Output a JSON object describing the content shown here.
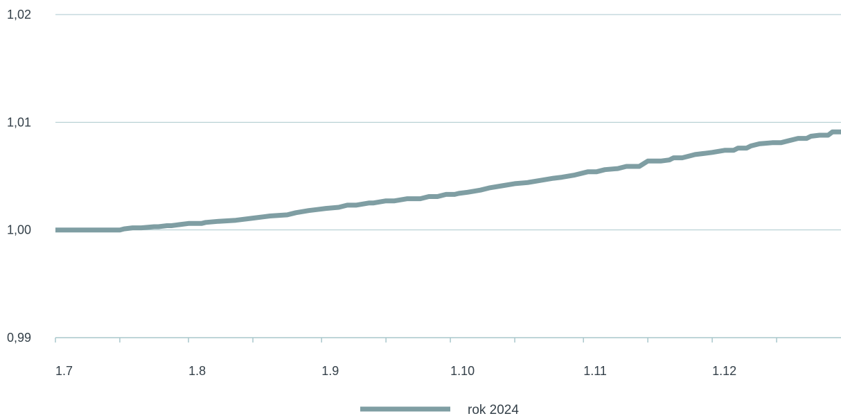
{
  "chart_data": {
    "type": "line",
    "title": "",
    "xlabel": "",
    "ylabel": "",
    "ylim": [
      0.99,
      1.02
    ],
    "y_ticks": [
      "0,99",
      "1,00",
      "1,01",
      "1,02"
    ],
    "y_tick_values": [
      0.99,
      1.0,
      1.01,
      1.02
    ],
    "x_tick_labels": [
      "1.7",
      "1.8",
      "1.9",
      "1.10",
      "1.11",
      "1.12"
    ],
    "x_tick_dates": [
      "2024-07-01",
      "2024-08-01",
      "2024-09-01",
      "2024-10-01",
      "2024-11-01",
      "2024-12-01"
    ],
    "x_range": [
      "2024-07-01",
      "2024-12-31"
    ],
    "grid": "horizontal",
    "legend_position": "bottom-center",
    "colors": {
      "series": "#7f9ea3",
      "grid": "#a9c7cc",
      "axis": "#a9c7cc",
      "text": "#333f48"
    },
    "series": [
      {
        "name": "rok 2024",
        "x": [
          "2024-07-01",
          "2024-07-16",
          "2024-07-17",
          "2024-07-19",
          "2024-07-21",
          "2024-07-24",
          "2024-07-25",
          "2024-07-27",
          "2024-07-28",
          "2024-07-30",
          "2024-08-01",
          "2024-08-04",
          "2024-08-05",
          "2024-08-08",
          "2024-08-12",
          "2024-08-16",
          "2024-08-20",
          "2024-08-24",
          "2024-08-26",
          "2024-08-29",
          "2024-08-31",
          "2024-09-02",
          "2024-09-05",
          "2024-09-07",
          "2024-09-09",
          "2024-09-12",
          "2024-09-13",
          "2024-09-16",
          "2024-09-18",
          "2024-09-21",
          "2024-09-24",
          "2024-09-26",
          "2024-09-28",
          "2024-09-30",
          "2024-10-02",
          "2024-10-03",
          "2024-10-05",
          "2024-10-08",
          "2024-10-10",
          "2024-10-13",
          "2024-10-16",
          "2024-10-19",
          "2024-10-22",
          "2024-10-25",
          "2024-10-27",
          "2024-10-30",
          "2024-11-02",
          "2024-11-04",
          "2024-11-06",
          "2024-11-09",
          "2024-11-11",
          "2024-11-14",
          "2024-11-16",
          "2024-11-19",
          "2024-11-21",
          "2024-11-22",
          "2024-11-24",
          "2024-11-26",
          "2024-11-27",
          "2024-11-29",
          "2024-12-01",
          "2024-12-04",
          "2024-12-06",
          "2024-12-07",
          "2024-12-09",
          "2024-12-10",
          "2024-12-12",
          "2024-12-15",
          "2024-12-17",
          "2024-12-19",
          "2024-12-21",
          "2024-12-23",
          "2024-12-24",
          "2024-12-26",
          "2024-12-28",
          "2024-12-29",
          "2024-12-31"
        ],
        "y": [
          1.0,
          1.0,
          1.0001,
          1.0002,
          1.0002,
          1.0003,
          1.0003,
          1.0004,
          1.0004,
          1.0005,
          1.0006,
          1.0006,
          1.0007,
          1.0008,
          1.0009,
          1.0011,
          1.0013,
          1.0014,
          1.0016,
          1.0018,
          1.0019,
          1.002,
          1.0021,
          1.0023,
          1.0023,
          1.0025,
          1.0025,
          1.0027,
          1.0027,
          1.0029,
          1.0029,
          1.0031,
          1.0031,
          1.0033,
          1.0033,
          1.0034,
          1.0035,
          1.0037,
          1.0039,
          1.0041,
          1.0043,
          1.0044,
          1.0046,
          1.0048,
          1.0049,
          1.0051,
          1.0054,
          1.0054,
          1.0056,
          1.0057,
          1.0059,
          1.0059,
          1.0064,
          1.0064,
          1.0065,
          1.0067,
          1.0067,
          1.0069,
          1.007,
          1.0071,
          1.0072,
          1.0074,
          1.0074,
          1.0076,
          1.0076,
          1.0078,
          1.008,
          1.0081,
          1.0081,
          1.0083,
          1.0085,
          1.0085,
          1.0087,
          1.0088,
          1.0088,
          1.0091,
          1.0091
        ]
      }
    ]
  }
}
